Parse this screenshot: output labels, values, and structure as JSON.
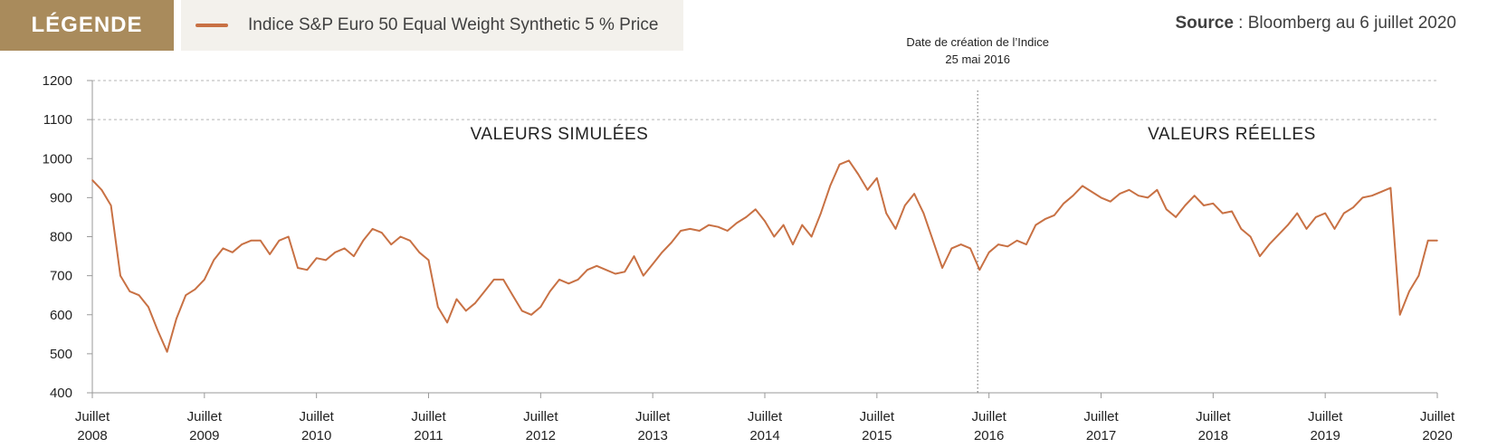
{
  "legend": {
    "badge_label": "LÉGENDE",
    "badge_color": "#a98b5c",
    "series_label": "Indice S&P Euro 50 Equal Weight Synthetic 5 % Price"
  },
  "source": {
    "prefix": "Source",
    "separator": " : ",
    "text": "Bloomberg au 6 juillet 2020"
  },
  "chart_data": {
    "type": "line",
    "title": "",
    "xlabel": "",
    "ylabel": "",
    "ylim": [
      400,
      1200
    ],
    "yticks": [
      400,
      500,
      600,
      700,
      800,
      900,
      1000,
      1100,
      1200
    ],
    "xlim": [
      "2008-07",
      "2020-07"
    ],
    "xtick_labels": [
      {
        "month": "Juillet",
        "year": "2008"
      },
      {
        "month": "Juillet",
        "year": "2009"
      },
      {
        "month": "Juillet",
        "year": "2010"
      },
      {
        "month": "Juillet",
        "year": "2011"
      },
      {
        "month": "Juillet",
        "year": "2012"
      },
      {
        "month": "Juillet",
        "year": "2013"
      },
      {
        "month": "Juillet",
        "year": "2014"
      },
      {
        "month": "Juillet",
        "year": "2015"
      },
      {
        "month": "Juillet",
        "year": "2016"
      },
      {
        "month": "Juillet",
        "year": "2017"
      },
      {
        "month": "Juillet",
        "year": "2018"
      },
      {
        "month": "Juillet",
        "year": "2019"
      },
      {
        "month": "Juillet",
        "year": "2020"
      }
    ],
    "grid_values": [
      1100,
      1200
    ],
    "series": [
      {
        "name": "Indice S&P Euro 50 Equal Weight Synthetic 5 % Price",
        "color": "#c87144",
        "points": [
          [
            "2008-07",
            945
          ],
          [
            "2008-08",
            920
          ],
          [
            "2008-09",
            880
          ],
          [
            "2008-10",
            700
          ],
          [
            "2008-11",
            660
          ],
          [
            "2008-12",
            650
          ],
          [
            "2009-01",
            620
          ],
          [
            "2009-02",
            560
          ],
          [
            "2009-03",
            505
          ],
          [
            "2009-04",
            590
          ],
          [
            "2009-05",
            650
          ],
          [
            "2009-06",
            665
          ],
          [
            "2009-07",
            690
          ],
          [
            "2009-08",
            740
          ],
          [
            "2009-09",
            770
          ],
          [
            "2009-10",
            760
          ],
          [
            "2009-11",
            780
          ],
          [
            "2009-12",
            790
          ],
          [
            "2010-01",
            790
          ],
          [
            "2010-02",
            755
          ],
          [
            "2010-03",
            790
          ],
          [
            "2010-04",
            800
          ],
          [
            "2010-05",
            720
          ],
          [
            "2010-06",
            715
          ],
          [
            "2010-07",
            745
          ],
          [
            "2010-08",
            740
          ],
          [
            "2010-09",
            760
          ],
          [
            "2010-10",
            770
          ],
          [
            "2010-11",
            750
          ],
          [
            "2010-12",
            790
          ],
          [
            "2011-01",
            820
          ],
          [
            "2011-02",
            810
          ],
          [
            "2011-03",
            780
          ],
          [
            "2011-04",
            800
          ],
          [
            "2011-05",
            790
          ],
          [
            "2011-06",
            760
          ],
          [
            "2011-07",
            740
          ],
          [
            "2011-08",
            620
          ],
          [
            "2011-09",
            580
          ],
          [
            "2011-10",
            640
          ],
          [
            "2011-11",
            610
          ],
          [
            "2011-12",
            630
          ],
          [
            "2012-01",
            660
          ],
          [
            "2012-02",
            690
          ],
          [
            "2012-03",
            690
          ],
          [
            "2012-04",
            650
          ],
          [
            "2012-05",
            610
          ],
          [
            "2012-06",
            600
          ],
          [
            "2012-07",
            620
          ],
          [
            "2012-08",
            660
          ],
          [
            "2012-09",
            690
          ],
          [
            "2012-10",
            680
          ],
          [
            "2012-11",
            690
          ],
          [
            "2012-12",
            715
          ],
          [
            "2013-01",
            725
          ],
          [
            "2013-02",
            715
          ],
          [
            "2013-03",
            705
          ],
          [
            "2013-04",
            710
          ],
          [
            "2013-05",
            750
          ],
          [
            "2013-06",
            700
          ],
          [
            "2013-07",
            730
          ],
          [
            "2013-08",
            760
          ],
          [
            "2013-09",
            785
          ],
          [
            "2013-10",
            815
          ],
          [
            "2013-11",
            820
          ],
          [
            "2013-12",
            815
          ],
          [
            "2014-01",
            830
          ],
          [
            "2014-02",
            825
          ],
          [
            "2014-03",
            815
          ],
          [
            "2014-04",
            835
          ],
          [
            "2014-05",
            850
          ],
          [
            "2014-06",
            870
          ],
          [
            "2014-07",
            840
          ],
          [
            "2014-08",
            800
          ],
          [
            "2014-09",
            830
          ],
          [
            "2014-10",
            780
          ],
          [
            "2014-11",
            830
          ],
          [
            "2014-12",
            800
          ],
          [
            "2015-01",
            860
          ],
          [
            "2015-02",
            930
          ],
          [
            "2015-03",
            985
          ],
          [
            "2015-04",
            995
          ],
          [
            "2015-05",
            960
          ],
          [
            "2015-06",
            920
          ],
          [
            "2015-07",
            950
          ],
          [
            "2015-08",
            860
          ],
          [
            "2015-09",
            820
          ],
          [
            "2015-10",
            880
          ],
          [
            "2015-11",
            910
          ],
          [
            "2015-12",
            860
          ],
          [
            "2016-01",
            790
          ],
          [
            "2016-02",
            720
          ],
          [
            "2016-03",
            770
          ],
          [
            "2016-04",
            780
          ],
          [
            "2016-05",
            770
          ],
          [
            "2016-06",
            715
          ],
          [
            "2016-07",
            760
          ],
          [
            "2016-08",
            780
          ],
          [
            "2016-09",
            775
          ],
          [
            "2016-10",
            790
          ],
          [
            "2016-11",
            780
          ],
          [
            "2016-12",
            830
          ],
          [
            "2017-01",
            845
          ],
          [
            "2017-02",
            855
          ],
          [
            "2017-03",
            885
          ],
          [
            "2017-04",
            905
          ],
          [
            "2017-05",
            930
          ],
          [
            "2017-06",
            915
          ],
          [
            "2017-07",
            900
          ],
          [
            "2017-08",
            890
          ],
          [
            "2017-09",
            910
          ],
          [
            "2017-10",
            920
          ],
          [
            "2017-11",
            905
          ],
          [
            "2017-12",
            900
          ],
          [
            "2018-01",
            920
          ],
          [
            "2018-02",
            870
          ],
          [
            "2018-03",
            850
          ],
          [
            "2018-04",
            880
          ],
          [
            "2018-05",
            905
          ],
          [
            "2018-06",
            880
          ],
          [
            "2018-07",
            885
          ],
          [
            "2018-08",
            860
          ],
          [
            "2018-09",
            865
          ],
          [
            "2018-10",
            820
          ],
          [
            "2018-11",
            800
          ],
          [
            "2018-12",
            750
          ],
          [
            "2019-01",
            780
          ],
          [
            "2019-02",
            805
          ],
          [
            "2019-03",
            830
          ],
          [
            "2019-04",
            860
          ],
          [
            "2019-05",
            820
          ],
          [
            "2019-06",
            850
          ],
          [
            "2019-07",
            860
          ],
          [
            "2019-08",
            820
          ],
          [
            "2019-09",
            860
          ],
          [
            "2019-10",
            875
          ],
          [
            "2019-11",
            900
          ],
          [
            "2019-12",
            905
          ],
          [
            "2020-01",
            915
          ],
          [
            "2020-02",
            925
          ],
          [
            "2020-03",
            600
          ],
          [
            "2020-04",
            660
          ],
          [
            "2020-05",
            700
          ],
          [
            "2020-06",
            790
          ],
          [
            "2020-07",
            790
          ]
        ]
      }
    ],
    "annotations": {
      "regions": [
        {
          "label": "VALEURS SIMULÉES",
          "center": "2012-09",
          "y": 1065
        },
        {
          "label": "VALEURS RÉELLES",
          "center": "2018-09",
          "y": 1065
        }
      ],
      "vline": {
        "x": "2016-05-25",
        "label_line1": "Date de création de l’Indice",
        "label_line2": "25 mai 2016"
      }
    }
  }
}
